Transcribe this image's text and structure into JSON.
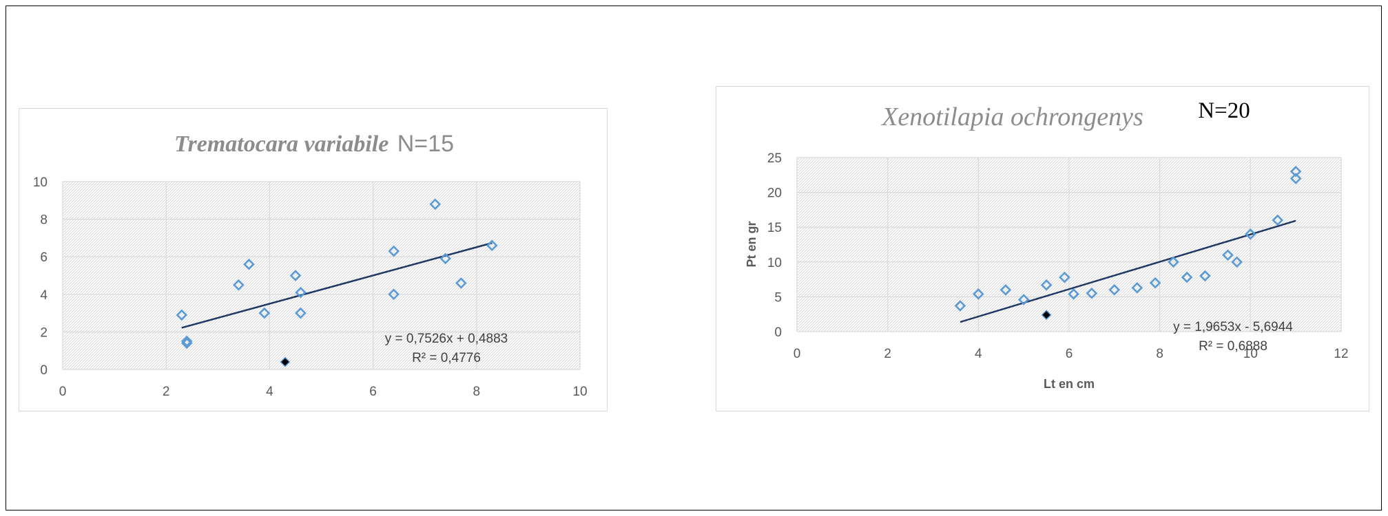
{
  "chart_data": [
    {
      "type": "scatter",
      "title_species": "Trematocara variabile",
      "title_n": "N=15",
      "xlabel": "",
      "ylabel": "",
      "xlim": [
        0,
        10
      ],
      "ylim": [
        0,
        10
      ],
      "xticks": [
        "0",
        "2",
        "4",
        "6",
        "8",
        "10"
      ],
      "yticks": [
        "0",
        "2",
        "4",
        "6",
        "8",
        "10"
      ],
      "grid": true,
      "series": [
        {
          "points": [
            [
              2.3,
              2.9
            ],
            [
              2.4,
              1.5
            ],
            [
              2.4,
              1.4
            ],
            [
              3.4,
              4.5
            ],
            [
              3.6,
              5.6
            ],
            [
              3.9,
              3.0
            ],
            [
              4.5,
              5.0
            ],
            [
              4.6,
              4.1
            ],
            [
              4.6,
              3.0
            ],
            [
              6.4,
              6.3
            ],
            [
              6.4,
              4.0
            ],
            [
              7.2,
              8.8
            ],
            [
              7.4,
              5.9
            ],
            [
              7.7,
              4.6
            ],
            [
              8.3,
              6.6
            ]
          ],
          "color": "#5b9bd5",
          "marker": "diamond-open"
        },
        {
          "points": [
            [
              4.3,
              0.4
            ]
          ],
          "color": "#000000",
          "marker": "diamond-filled"
        }
      ],
      "trendline": {
        "slope": 0.7526,
        "intercept": 0.4883,
        "x_range": [
          2.3,
          8.3
        ],
        "color": "#1f3864",
        "equation": "y = 0,7526x + 0,4883",
        "r2": "R² = 0,4776"
      }
    },
    {
      "type": "scatter",
      "title_species": "Xenotilapia ochrongenys",
      "title_n": "N=20",
      "xlabel": "Lt en cm",
      "ylabel": "Pt en gr",
      "xlim": [
        0,
        12
      ],
      "ylim": [
        0,
        25
      ],
      "xticks": [
        "0",
        "2",
        "4",
        "6",
        "8",
        "10",
        "12"
      ],
      "yticks": [
        "0",
        "5",
        "10",
        "15",
        "20",
        "25"
      ],
      "grid": true,
      "series": [
        {
          "points": [
            [
              3.6,
              3.7
            ],
            [
              4.0,
              5.4
            ],
            [
              4.6,
              6.0
            ],
            [
              5.0,
              4.6
            ],
            [
              5.5,
              6.7
            ],
            [
              5.9,
              7.8
            ],
            [
              6.1,
              5.4
            ],
            [
              6.5,
              5.5
            ],
            [
              7.0,
              6.0
            ],
            [
              7.5,
              6.3
            ],
            [
              7.9,
              7.0
            ],
            [
              8.3,
              10.0
            ],
            [
              8.6,
              7.8
            ],
            [
              9.0,
              8.0
            ],
            [
              9.5,
              11.0
            ],
            [
              9.7,
              10.0
            ],
            [
              10.0,
              14.0
            ],
            [
              10.6,
              16.0
            ],
            [
              11.0,
              22.0
            ],
            [
              11.0,
              23.0
            ]
          ],
          "color": "#5b9bd5",
          "marker": "diamond-open"
        },
        {
          "points": [
            [
              5.5,
              2.4
            ]
          ],
          "color": "#000000",
          "marker": "diamond-filled"
        }
      ],
      "trendline": {
        "slope": 1.9653,
        "intercept": -5.6944,
        "x_range": [
          3.6,
          11.0
        ],
        "color": "#1f3864",
        "equation": "y = 1,9653x - 5,6944",
        "r2": "R² = 0,6888"
      }
    }
  ]
}
